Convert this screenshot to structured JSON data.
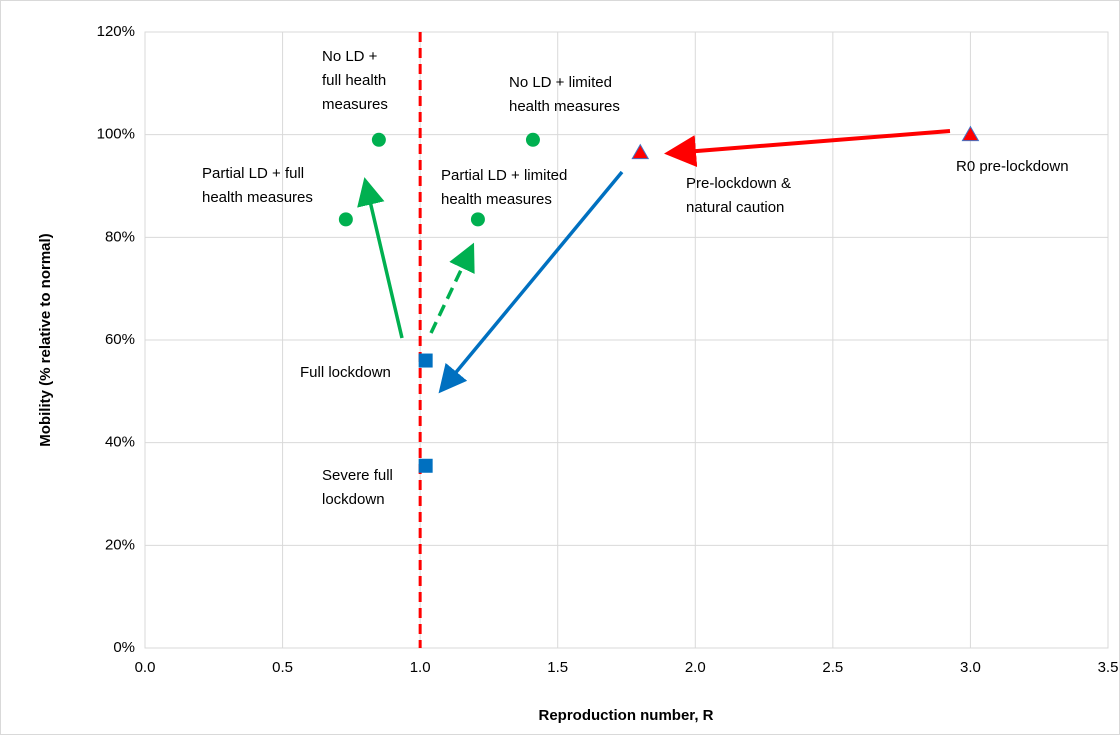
{
  "chart_data": {
    "type": "scatter",
    "xlabel": "Reproduction number, R",
    "ylabel": "Mobility (% relative to normal)",
    "xlim": [
      0,
      3.5
    ],
    "ylim": [
      0,
      120
    ],
    "xticks": [
      {
        "value": 0,
        "label": "0.0"
      },
      0.5,
      {
        "value": 1,
        "label": "1.0"
      },
      1.5,
      {
        "value": 2,
        "label": "2.0"
      },
      2.5,
      {
        "value": 3,
        "label": "3.0"
      },
      3.5
    ],
    "yticks": [
      {
        "value": 0,
        "label": "0%"
      },
      {
        "value": 20,
        "label": "20%"
      },
      {
        "value": 40,
        "label": "40%"
      },
      {
        "value": 60,
        "label": "60%"
      },
      {
        "value": 80,
        "label": "80%"
      },
      {
        "value": 100,
        "label": "100%"
      },
      {
        "value": 120,
        "label": "120%"
      }
    ],
    "grid": true,
    "reference_x": 1,
    "reference_color": "#ff0000",
    "series": [
      {
        "marker": "triangle",
        "color": "#ff0000",
        "x": [
          3.0,
          1.8
        ],
        "values": [
          100,
          96.5
        ]
      },
      {
        "marker": "square",
        "color": "#0070c0",
        "x": [
          1.02,
          1.02
        ],
        "values": [
          56,
          35.5
        ]
      },
      {
        "marker": "circle",
        "color": "#00b050",
        "x": [
          0.85,
          1.41,
          0.73,
          1.21
        ],
        "values": [
          99,
          99,
          83.5,
          83.5
        ]
      }
    ],
    "annotations": [
      [
        "No LD +",
        "full health",
        "measures"
      ],
      [
        "No LD + limited",
        "health measures"
      ],
      [
        "Partial LD + full",
        "health measures"
      ],
      [
        "Partial LD + limited",
        "health measures"
      ],
      [
        "Pre-lockdown &",
        "natural caution"
      ],
      [
        "R0 pre-lockdown"
      ],
      [
        "Full lockdown"
      ],
      [
        "Severe full",
        "lockdown"
      ]
    ]
  }
}
